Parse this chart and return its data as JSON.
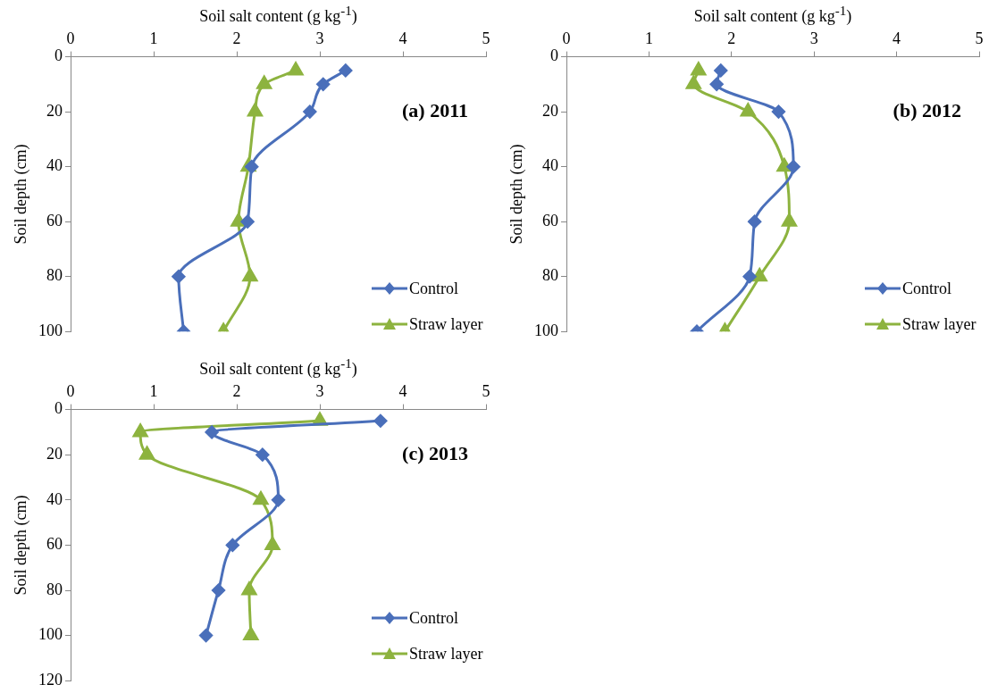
{
  "chart_data": [
    {
      "type": "line",
      "title": "(a) 2011",
      "xlabel": "Soil salt content (g kg$^{-1}$)",
      "ylabel": "Soil depth (cm)",
      "xlim": [
        0,
        5
      ],
      "xticks": [
        0,
        1,
        2,
        3,
        4,
        5
      ],
      "ylim": [
        100,
        0
      ],
      "yticks": [
        0,
        20,
        40,
        60,
        80,
        100
      ],
      "grid": false,
      "legend": "bottom right",
      "series": [
        {
          "name": "Control",
          "color": "#4a6fba",
          "marker": "diamond",
          "x": [
            3.31,
            3.04,
            2.88,
            2.18,
            2.13,
            1.3,
            1.36
          ],
          "values": [
            5,
            10,
            20,
            40,
            60,
            80,
            100
          ]
        },
        {
          "name": "Straw layer",
          "color": "#8db33f",
          "marker": "triangle",
          "x": [
            2.71,
            2.33,
            2.22,
            2.14,
            2.02,
            2.16,
            1.84
          ],
          "values": [
            5,
            10,
            20,
            40,
            60,
            80,
            100
          ]
        }
      ]
    },
    {
      "type": "line",
      "title": "(b) 2012",
      "xlabel": "Soil salt content (g kg$^{-1}$)",
      "ylabel": "Soil depth (cm)",
      "xlim": [
        0,
        5
      ],
      "xticks": [
        0,
        1,
        2,
        3,
        4,
        5
      ],
      "ylim": [
        100,
        0
      ],
      "yticks": [
        0,
        20,
        40,
        60,
        80,
        100
      ],
      "grid": false,
      "legend": "bottom right",
      "series": [
        {
          "name": "Control",
          "color": "#4a6fba",
          "marker": "diamond",
          "x": [
            1.87,
            1.82,
            2.57,
            2.75,
            2.28,
            2.22,
            1.58
          ],
          "values": [
            5,
            10,
            20,
            40,
            60,
            80,
            100
          ]
        },
        {
          "name": "Straw layer",
          "color": "#8db33f",
          "marker": "triangle",
          "x": [
            1.6,
            1.54,
            2.2,
            2.64,
            2.7,
            2.34,
            1.92
          ],
          "values": [
            5,
            10,
            20,
            40,
            60,
            80,
            100
          ]
        }
      ]
    },
    {
      "type": "line",
      "title": "(c) 2013",
      "xlabel": "Soil salt content (g kg$^{-1}$)",
      "ylabel": "Soil depth (cm)",
      "xlim": [
        0,
        5
      ],
      "xticks": [
        0,
        1,
        2,
        3,
        4,
        5
      ],
      "ylim": [
        120,
        0
      ],
      "yticks": [
        0,
        20,
        40,
        60,
        80,
        100,
        120
      ],
      "grid": false,
      "legend": "bottom right",
      "series": [
        {
          "name": "Control",
          "color": "#4a6fba",
          "marker": "diamond",
          "x": [
            3.73,
            1.7,
            2.31,
            2.5,
            1.95,
            1.78,
            1.63
          ],
          "values": [
            5,
            10,
            20,
            40,
            60,
            80,
            100
          ]
        },
        {
          "name": "Straw layer",
          "color": "#8db33f",
          "marker": "triangle",
          "x": [
            3.0,
            0.84,
            0.92,
            2.29,
            2.43,
            2.15,
            2.17
          ],
          "values": [
            5,
            10,
            20,
            40,
            60,
            80,
            100
          ]
        }
      ]
    }
  ]
}
